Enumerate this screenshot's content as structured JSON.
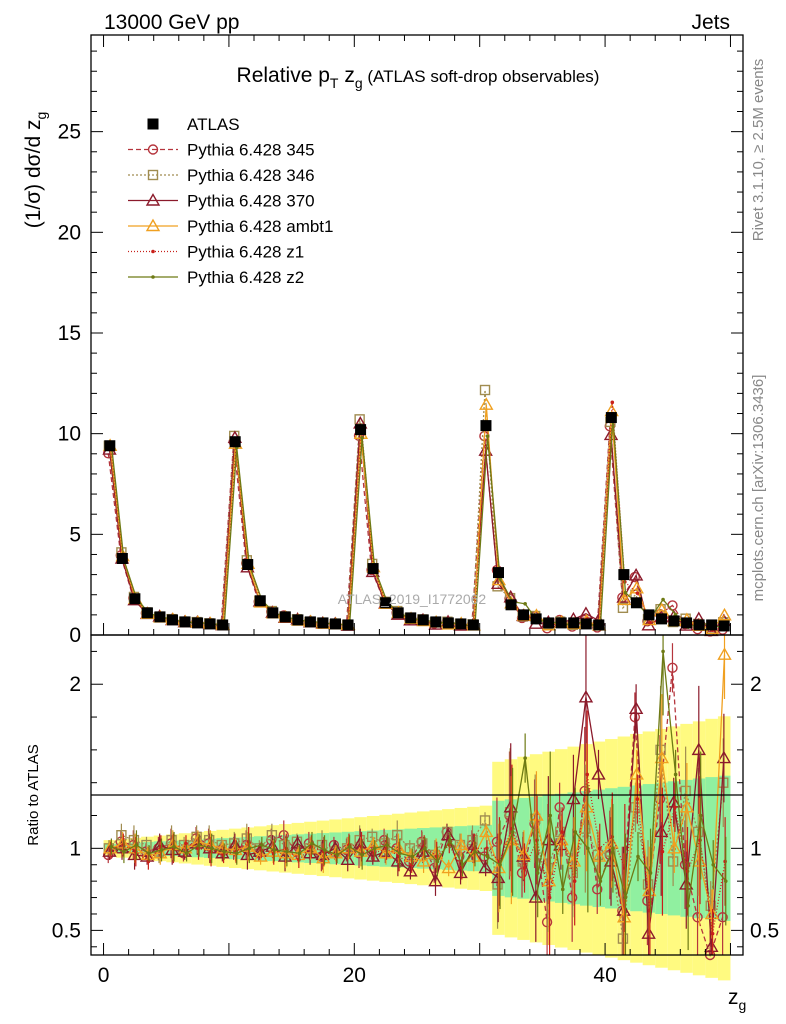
{
  "header": {
    "energy": "13000 GeV pp",
    "category": "Jets"
  },
  "side": {
    "rivet": "Rivet 3.1.10, ≥ 2.5M events",
    "mcplots": "mcplots.cern.ch [arXiv:1306.3436]"
  },
  "watermark": "ATLAS_2019_I1772062",
  "title": {
    "main": "Relative p",
    "sub_T": "T",
    "mid": " z",
    "sub_g": "g",
    "tail": " (ATLAS soft-drop observables)"
  },
  "axes": {
    "ylabel": "(1/σ) dσ/d z",
    "ylabel_sub": "g",
    "xlabel": "z",
    "xlabel_sub": "g",
    "ratio_label": "Ratio to ATLAS"
  },
  "colors": {
    "atlas": "#000000",
    "p345": "#b5353d",
    "p346": "#a08c50",
    "p370": "#8b1a2b",
    "ambt1": "#f0a020",
    "z1": "#c8201a",
    "z2": "#6e7a14",
    "band_yellow": "#fffa80",
    "band_green": "#90f0a0"
  },
  "legend": [
    {
      "key": "atlas",
      "label": "ATLAS",
      "marker": "square",
      "dash": "none"
    },
    {
      "key": "p345",
      "label": "Pythia 6.428 345",
      "marker": "circle",
      "dash": "5,3"
    },
    {
      "key": "p346",
      "label": "Pythia 6.428 346",
      "marker": "square-open",
      "dash": "2,2"
    },
    {
      "key": "p370",
      "label": "Pythia 6.428 370",
      "marker": "triangle",
      "dash": "none"
    },
    {
      "key": "ambt1",
      "label": "Pythia 6.428 ambt1",
      "marker": "triangle",
      "dash": "none"
    },
    {
      "key": "z1",
      "label": "Pythia 6.428 z1",
      "marker": "dot",
      "dash": "1,2"
    },
    {
      "key": "z2",
      "label": "Pythia 6.428 z2",
      "marker": "dot",
      "dash": "none"
    }
  ],
  "chart_data": {
    "type": "line",
    "xlim": [
      -1,
      51
    ],
    "ylim_main": [
      0,
      29.8
    ],
    "ylim_ratio": [
      0.35,
      2.3
    ],
    "x_ticks": [
      0,
      20,
      40
    ],
    "y_ticks_main": [
      0,
      5,
      10,
      15,
      20,
      25
    ],
    "y_ticks_ratio": [
      0.5,
      1,
      2
    ],
    "x": [
      0.5,
      1.5,
      2.5,
      3.5,
      4.5,
      5.5,
      6.5,
      7.5,
      8.5,
      9.5,
      10.5,
      11.5,
      12.5,
      13.5,
      14.5,
      15.5,
      16.5,
      17.5,
      18.5,
      19.5,
      20.5,
      21.5,
      22.5,
      23.5,
      24.5,
      25.5,
      26.5,
      27.5,
      28.5,
      29.5,
      30.5,
      31.5,
      32.5,
      33.5,
      34.5,
      35.5,
      36.5,
      37.5,
      38.5,
      39.5,
      40.5,
      41.5,
      42.5,
      43.5,
      44.5,
      45.5,
      46.5,
      47.5,
      48.5,
      49.5
    ],
    "atlas": [
      9.4,
      3.8,
      1.8,
      1.1,
      0.9,
      0.75,
      0.65,
      0.6,
      0.55,
      0.5,
      9.6,
      3.5,
      1.7,
      1.1,
      0.9,
      0.75,
      0.65,
      0.6,
      0.55,
      0.5,
      10.2,
      3.3,
      1.6,
      1.1,
      0.85,
      0.75,
      0.65,
      0.6,
      0.55,
      0.5,
      10.4,
      3.1,
      1.5,
      1.0,
      0.8,
      0.6,
      0.6,
      0.6,
      0.55,
      0.5,
      10.8,
      3.0,
      1.6,
      1.0,
      0.8,
      0.7,
      0.6,
      0.5,
      0.5,
      0.45
    ],
    "series_ratio": [
      {
        "key": "p345",
        "values": [
          0.96,
          1.04,
          1.02,
          0.98,
          1.0,
          1.03,
          0.97,
          1.06,
          1.03,
          0.99,
          1.0,
          1.02,
          0.97,
          1.05,
          1.08,
          0.98,
          1.03,
          0.95,
          1.02,
          0.99,
          0.97,
          0.98,
          1.05,
          1.0,
          0.92,
          1.04,
          0.88,
          1.1,
          0.95,
          1.02,
          0.95,
          1.04,
          1.2,
          0.85,
          1.15,
          0.55,
          1.25,
          0.7,
          1.35,
          0.75,
          0.96,
          0.62,
          1.8,
          0.68,
          1.3,
          2.1,
          0.9,
          0.58,
          0.35,
          0.58
        ]
      },
      {
        "key": "p346",
        "values": [
          1.0,
          1.08,
          1.05,
          1.02,
          0.98,
          1.05,
          1.02,
          1.07,
          1.05,
          1.02,
          1.03,
          1.06,
          1.0,
          1.08,
          1.02,
          1.04,
          1.0,
          1.02,
          0.98,
          1.0,
          1.05,
          1.07,
          1.03,
          1.08,
          1.0,
          1.03,
          0.96,
          1.1,
          1.02,
          1.05,
          1.17,
          0.78,
          1.22,
          0.92,
          1.18,
          0.88,
          1.1,
          0.85,
          1.12,
          0.96,
          0.98,
          0.45,
          1.25,
          0.78,
          1.6,
          0.92,
          1.35,
          1.1,
          0.65,
          1.4
        ]
      },
      {
        "key": "p370",
        "values": [
          0.98,
          1.0,
          0.96,
          0.95,
          1.02,
          0.99,
          0.98,
          1.03,
          1.0,
          0.97,
          1.02,
          0.96,
          0.98,
          1.01,
          0.95,
          1.03,
          0.97,
          0.96,
          1.0,
          0.93,
          1.03,
          0.95,
          0.98,
          0.92,
          0.86,
          0.98,
          0.8,
          1.08,
          0.85,
          1.0,
          0.88,
          0.82,
          1.25,
          0.95,
          0.7,
          1.05,
          1.02,
          1.3,
          1.92,
          1.45,
          0.92,
          0.62,
          1.85,
          0.48,
          1.1,
          1.28,
          0.78,
          1.6,
          0.4,
          1.55
        ]
      },
      {
        "key": "ambt1",
        "values": [
          1.0,
          1.03,
          1.0,
          0.96,
          0.97,
          1.02,
          1.0,
          1.04,
          1.02,
          1.0,
          0.99,
          1.01,
          0.95,
          0.98,
          0.97,
          0.96,
          1.0,
          0.94,
          0.97,
          1.0,
          0.98,
          1.02,
          0.97,
          1.0,
          0.95,
          0.92,
          0.97,
          0.88,
          1.02,
          0.95,
          1.1,
          0.88,
          1.05,
          0.96,
          1.2,
          0.8,
          1.05,
          0.92,
          1.25,
          0.95,
          1.03,
          0.58,
          1.45,
          0.74,
          1.55,
          1.0,
          1.25,
          0.92,
          0.6,
          2.18
        ]
      },
      {
        "key": "z1",
        "values": [
          0.99,
          1.02,
          0.98,
          0.92,
          1.01,
          1.0,
          1.03,
          1.0,
          0.98,
          0.96,
          0.98,
          1.04,
          0.99,
          0.97,
          1.0,
          0.93,
          1.01,
          0.98,
          0.95,
          1.02,
          1.01,
          0.97,
          1.0,
          0.95,
          0.9,
          1.01,
          0.95,
          1.02,
          0.88,
          1.0,
          1.0,
          0.92,
          1.12,
          0.88,
          1.05,
          0.7,
          1.1,
          0.8,
          1.45,
          1.0,
          1.07,
          0.88,
          1.3,
          0.62,
          0.98,
          1.25,
          0.86,
          1.05,
          0.48,
          0.92
        ]
      },
      {
        "key": "z2",
        "values": [
          1.01,
          0.98,
          1.02,
          0.97,
          0.99,
          1.01,
          0.97,
          1.02,
          1.0,
          0.98,
          0.97,
          1.0,
          1.02,
          0.99,
          0.98,
          0.97,
          1.03,
          0.99,
          0.96,
          1.01,
          0.96,
          1.0,
          1.02,
          0.97,
          0.95,
          1.0,
          0.92,
          1.05,
          0.9,
          0.98,
          0.95,
          0.9,
          1.1,
          1.55,
          0.85,
          1.2,
          0.75,
          1.1,
          1.0,
          0.8,
          1.0,
          0.7,
          0.95,
          0.85,
          2.2,
          1.45,
          0.65,
          1.2,
          0.9,
          0.8
        ]
      }
    ]
  }
}
